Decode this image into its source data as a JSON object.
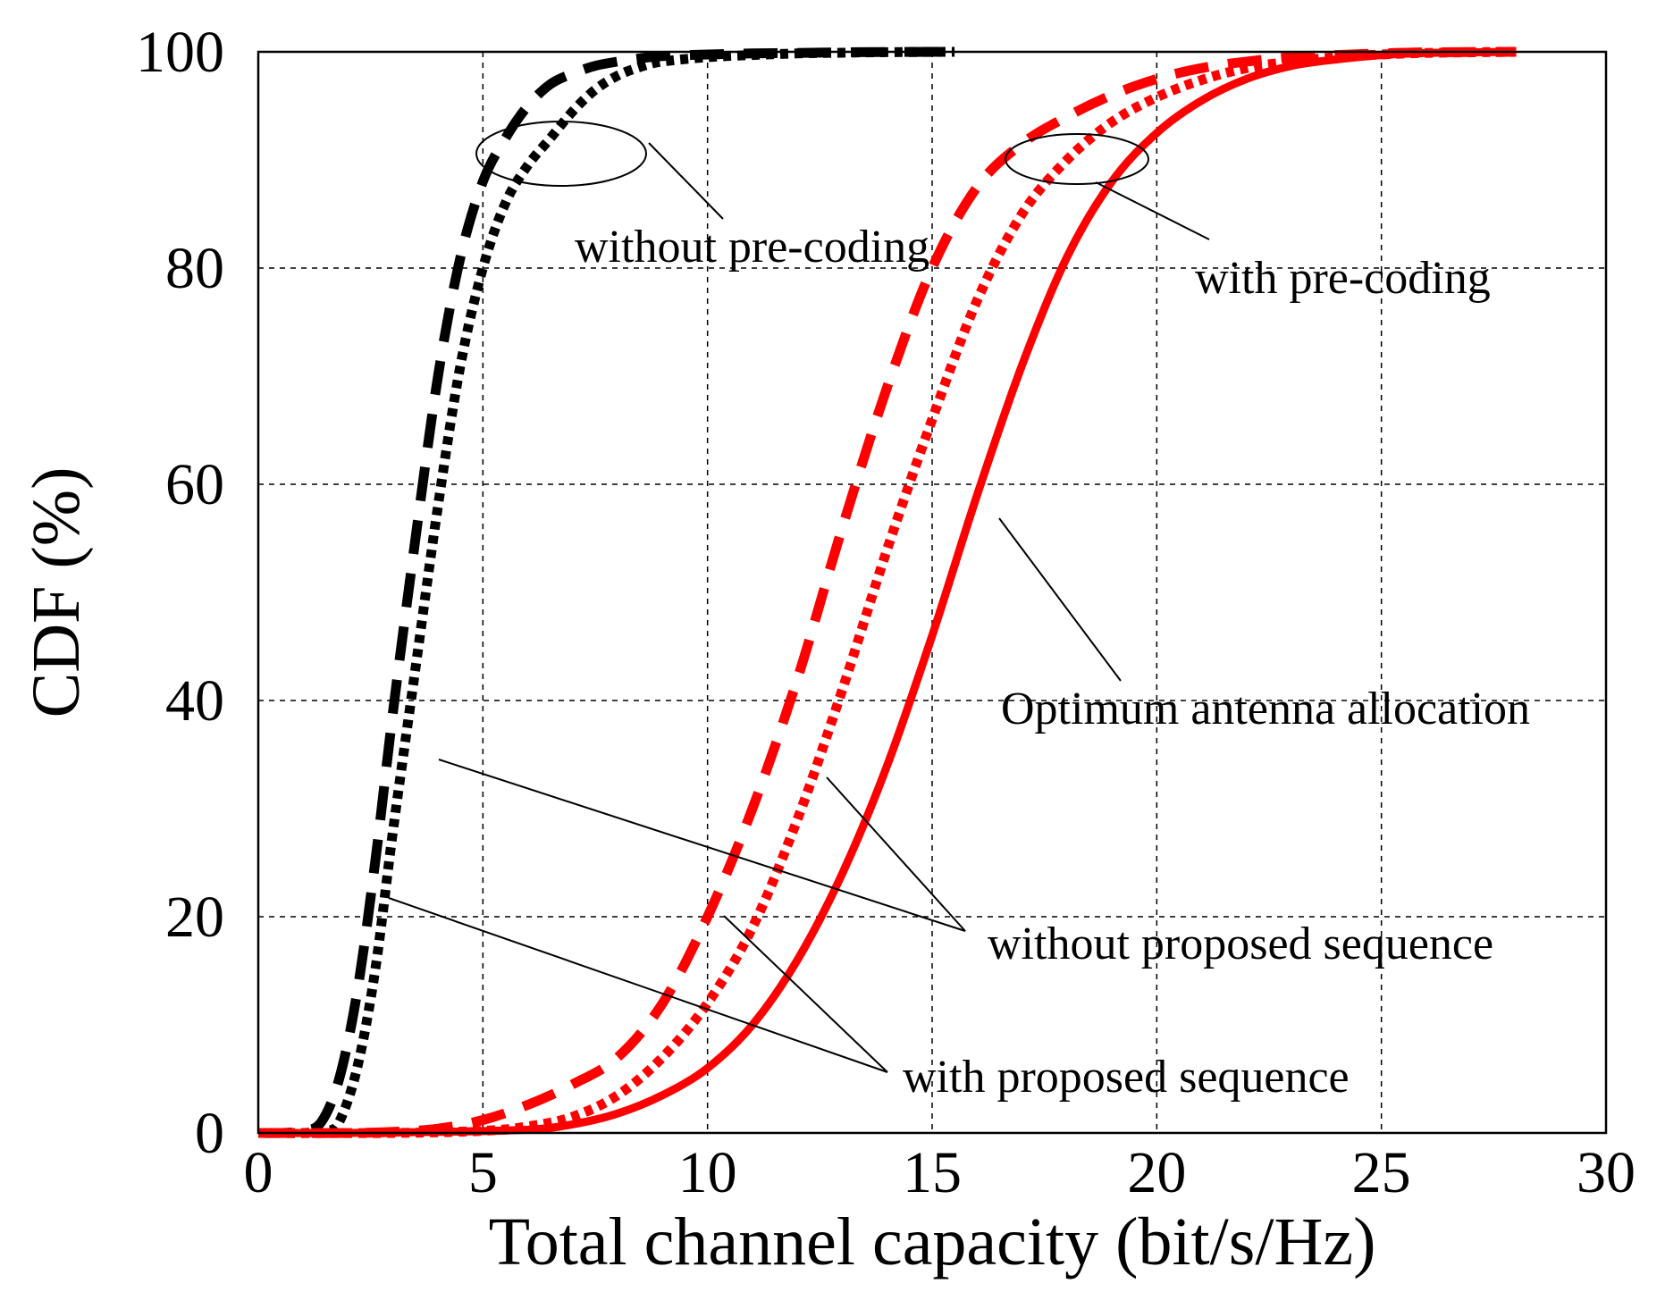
{
  "chart_data": {
    "type": "line",
    "title": "",
    "xlabel": "Total channel capacity (bit/s/Hz)",
    "ylabel": "CDF (%)",
    "xlim": [
      0,
      30
    ],
    "ylim": [
      0,
      100
    ],
    "xticks": [
      0,
      5,
      10,
      15,
      20,
      25,
      30
    ],
    "yticks": [
      0,
      20,
      40,
      60,
      80,
      100
    ],
    "grid": true,
    "series": [
      {
        "name": "without pre-coding, without proposed sequence",
        "color": "#000000",
        "style": "dashed",
        "x": [
          0,
          0.5,
          1.0,
          1.4,
          1.8,
          2.2,
          2.6,
          3.0,
          3.5,
          4.0,
          4.5,
          5.0,
          5.5,
          6.0,
          6.5,
          7.0,
          7.5,
          8.0,
          8.5,
          9.0,
          10.0,
          11.0,
          12.0,
          13.0,
          14.0,
          15.5
        ],
        "y": [
          0,
          0,
          0.2,
          1,
          5,
          13,
          25,
          39,
          55,
          70,
          81,
          88,
          92,
          95,
          97,
          98,
          98.7,
          99.1,
          99.4,
          99.6,
          99.75,
          99.85,
          99.9,
          99.95,
          99.98,
          100
        ]
      },
      {
        "name": "without pre-coding, with proposed sequence",
        "color": "#000000",
        "style": "dotted",
        "x": [
          0,
          0.5,
          1.0,
          1.5,
          1.8,
          2.2,
          2.6,
          3.0,
          3.5,
          4.0,
          4.5,
          5.0,
          5.5,
          6.0,
          6.5,
          7.0,
          7.5,
          8.0,
          8.5,
          9.0,
          10.0,
          11.0,
          12.0,
          13.0,
          14.0,
          15.5
        ],
        "y": [
          0,
          0,
          0,
          0.2,
          1,
          6,
          15,
          28,
          43,
          58,
          71,
          80,
          86,
          89.5,
          92,
          94.5,
          96.5,
          97.8,
          98.6,
          99.1,
          99.5,
          99.7,
          99.85,
          99.92,
          99.97,
          100
        ]
      },
      {
        "name": "with pre-coding, without proposed sequence",
        "color": "#ff0000",
        "style": "dashed",
        "x": [
          0,
          2,
          3,
          4,
          5,
          6,
          7,
          8,
          9,
          10,
          11,
          12,
          13,
          14,
          15,
          16,
          17,
          18,
          19,
          20,
          21,
          22,
          23,
          24,
          25,
          26,
          28
        ],
        "y": [
          0,
          0,
          0.1,
          0.4,
          1.2,
          2.6,
          4.5,
          7,
          12,
          20,
          30,
          42,
          56,
          69,
          80,
          87.5,
          91.5,
          94,
          96,
          97.5,
          98.5,
          99.1,
          99.5,
          99.7,
          99.85,
          99.95,
          100
        ]
      },
      {
        "name": "with pre-coding, with proposed sequence",
        "color": "#ff0000",
        "style": "dotted",
        "x": [
          0,
          3,
          5,
          6,
          7,
          8,
          9,
          10,
          11,
          12,
          13,
          14,
          15,
          16,
          17,
          18,
          19,
          20,
          21,
          22,
          23,
          24,
          25,
          26,
          28
        ],
        "y": [
          0,
          0,
          0.2,
          0.6,
          1.5,
          3.5,
          7,
          12,
          19,
          29,
          41,
          54,
          66,
          77,
          85,
          90,
          93.5,
          95.8,
          97.4,
          98.5,
          99.1,
          99.5,
          99.75,
          99.9,
          100
        ]
      },
      {
        "name": "Optimum antenna allocation",
        "color": "#ff0000",
        "style": "solid",
        "x": [
          0,
          2,
          4,
          6,
          7,
          8,
          9,
          10,
          11,
          12,
          13,
          14,
          15,
          16,
          17,
          18,
          19,
          20,
          21,
          22,
          23,
          24,
          25,
          26,
          28
        ],
        "y": [
          0,
          0,
          0.1,
          0.3,
          0.8,
          1.8,
          3.5,
          6,
          10,
          16,
          24,
          34,
          46,
          59,
          71,
          81,
          88,
          92.5,
          95.5,
          97.5,
          98.7,
          99.3,
          99.7,
          99.9,
          100
        ]
      }
    ],
    "annotations": [
      {
        "id": "without-precoding",
        "text": "without pre-coding"
      },
      {
        "id": "with-precoding",
        "text": "with pre-coding"
      },
      {
        "id": "optimum",
        "text": "Optimum antenna allocation"
      },
      {
        "id": "without-proposed",
        "text": "without proposed sequence"
      },
      {
        "id": "with-proposed",
        "text": "with proposed sequence"
      }
    ]
  }
}
